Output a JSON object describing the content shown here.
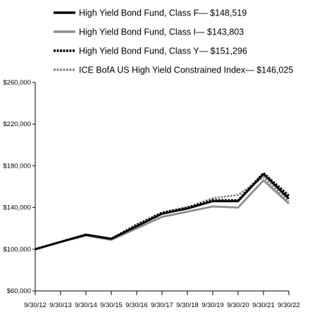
{
  "chart_data": {
    "type": "line",
    "title": "",
    "xlabel": "",
    "ylabel": "",
    "x": [
      "9/30/12",
      "9/30/13",
      "9/30/14",
      "9/30/15",
      "9/30/16",
      "9/30/17",
      "9/30/18",
      "9/30/19",
      "9/30/20",
      "9/30/21",
      "9/30/22"
    ],
    "y_ticks": [
      "$60,000",
      "$100,000",
      "$140,000",
      "$180,000",
      "$220,000",
      "$260,000"
    ],
    "ylim": [
      60000,
      260000
    ],
    "y_tick_values": [
      60000,
      100000,
      140000,
      180000,
      220000,
      260000
    ],
    "legend_position": "top",
    "grid": false,
    "series": [
      {
        "name": "High Yield Bond Fund, Class F",
        "end_value_label": "$148,519",
        "color": "#000000",
        "dash": "solid",
        "values": [
          100000,
          107000,
          114000,
          110000,
          122000,
          134000,
          139000,
          146000,
          146000,
          172000,
          148519
        ]
      },
      {
        "name": "High Yield Bond Fund, Class I",
        "end_value_label": "$143,803",
        "color": "#8c8c8c",
        "dash": "solid",
        "values": [
          100000,
          107000,
          113000,
          109000,
          120000,
          131000,
          136000,
          141000,
          140000,
          166000,
          143803
        ]
      },
      {
        "name": "High Yield Bond Fund, Class Y",
        "end_value_label": "$151,296",
        "color": "#000000",
        "dash": "dotted",
        "values": [
          100000,
          107000,
          114000,
          110000,
          123000,
          135000,
          140000,
          147000,
          147000,
          173000,
          151296
        ]
      },
      {
        "name": "ICE BofA US High Yield Constrained Index",
        "end_value_label": "$146,025",
        "color": "#8c8c8c",
        "dash": "dotted",
        "values": [
          100000,
          107000,
          114000,
          110000,
          124000,
          135000,
          140000,
          149000,
          152000,
          169000,
          146025
        ]
      }
    ]
  }
}
